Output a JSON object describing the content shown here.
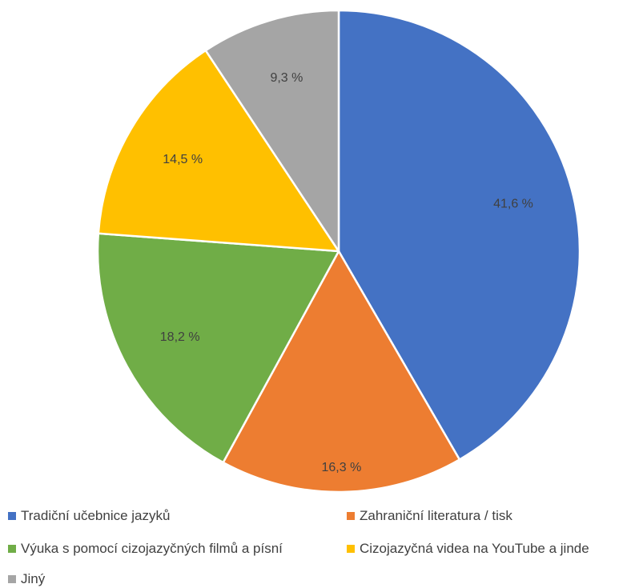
{
  "chart_data": {
    "type": "pie",
    "categories": [
      "Tradiční učebnice jazyků",
      "Zahraniční literatura / tisk",
      "Výuka s pomocí cizojazyčných filmů a písní",
      "Cizojazyčná videa na YouTube a jinde",
      "Jiný"
    ],
    "values": [
      41.6,
      16.3,
      18.2,
      14.5,
      9.3
    ],
    "data_labels": [
      "41,6 %",
      "16,3 %",
      "18,2 %",
      "14,5 %",
      "9,3 %"
    ],
    "colors": [
      "#4472c4",
      "#ed7d31",
      "#70ad47",
      "#ffc000",
      "#a5a5a5"
    ],
    "start_angle": "12 o'clock",
    "direction": "clockwise",
    "legend_position": "bottom"
  }
}
